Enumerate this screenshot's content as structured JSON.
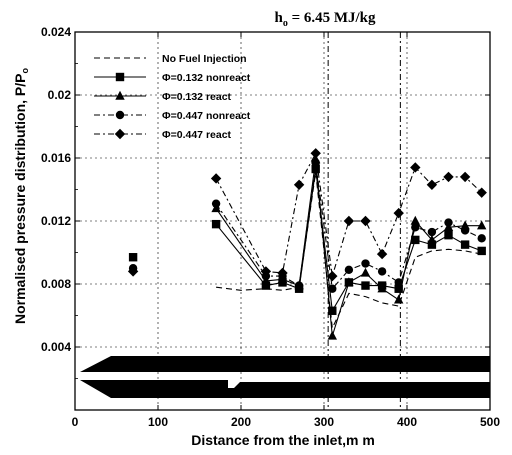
{
  "chart_data": {
    "type": "line",
    "title_main": "h",
    "title_sub": "o",
    "title_rest": " = 6.45 MJ/kg",
    "xlabel": "Distance from the inlet,m m",
    "ylabel": "Normalised pressure distribution, P/P",
    "ylabel_sub": "o",
    "xlim": [
      0,
      500
    ],
    "ylim": [
      0,
      0.024
    ],
    "x_ticks": [
      "0",
      "100",
      "200",
      "300",
      "400",
      "500"
    ],
    "y_ticks": [
      "0.004",
      "0.008",
      "0.012",
      "0.016",
      "0.02",
      "0.024"
    ],
    "grid": true,
    "legend_position": "top-left",
    "x_marker_lines": [
      305,
      392
    ],
    "series": [
      {
        "name": "No Fuel Injection",
        "dash": "6,4",
        "marker": "none",
        "x": [
          170,
          200,
          230,
          250,
          270,
          290,
          310,
          330,
          350,
          370,
          390,
          410,
          430,
          450,
          470,
          490
        ],
        "y": [
          0.0078,
          0.0076,
          0.0077,
          0.0076,
          0.0078,
          0.0151,
          0.0052,
          0.0074,
          0.0072,
          0.0068,
          0.0066,
          0.0097,
          0.0101,
          0.0102,
          0.0101,
          0.0099
        ],
        "iso_x": [],
        "iso_y": []
      },
      {
        "name": "Φ=0.132 nonreact",
        "dash": "",
        "marker": "square",
        "x": [
          170,
          230,
          250,
          270,
          290,
          310,
          330,
          350,
          370,
          390,
          410,
          430,
          450,
          470,
          490
        ],
        "y": [
          0.0118,
          0.0079,
          0.0081,
          0.0077,
          0.0153,
          0.0063,
          0.0081,
          0.0079,
          0.0079,
          0.0077,
          0.0108,
          0.0105,
          0.0111,
          0.0105,
          0.0101
        ],
        "iso_x": [
          70
        ],
        "iso_y": [
          0.0097
        ]
      },
      {
        "name": "Φ=0.132 react",
        "dash": "",
        "marker": "triangle",
        "x": [
          170,
          230,
          250,
          270,
          290,
          310,
          330,
          350,
          370,
          390,
          410,
          430,
          450,
          470,
          490
        ],
        "y": [
          0.0128,
          0.0082,
          0.0083,
          0.0079,
          0.0159,
          0.0047,
          0.0081,
          0.0087,
          0.0077,
          0.007,
          0.012,
          0.0108,
          0.0116,
          0.0117,
          0.0117
        ]
      },
      {
        "name": "Φ=0.447 nonreact",
        "dash": "6,3,2,3",
        "marker": "circle",
        "x": [
          170,
          230,
          250,
          270,
          290,
          310,
          330,
          350,
          370,
          390,
          410,
          430,
          450,
          470,
          490
        ],
        "y": [
          0.0131,
          0.0085,
          0.0085,
          0.0079,
          0.0157,
          0.0077,
          0.0089,
          0.0093,
          0.0088,
          0.0081,
          0.0116,
          0.0113,
          0.0119,
          0.0114,
          0.0109
        ],
        "iso_x": [
          70
        ],
        "iso_y": [
          0.009
        ]
      },
      {
        "name": "Φ=0.447 react",
        "dash": "6,3,2,3",
        "marker": "diamond",
        "x": [
          170,
          230,
          250,
          270,
          290,
          310,
          330,
          350,
          370,
          390,
          410,
          430,
          450,
          470,
          490
        ],
        "y": [
          0.0147,
          0.0088,
          0.0087,
          0.0143,
          0.0163,
          0.0085,
          0.012,
          0.012,
          0.0099,
          0.0125,
          0.0154,
          0.0143,
          0.0148,
          0.0148,
          0.0138
        ],
        "iso_x": [
          70
        ],
        "iso_y": [
          0.0088
        ]
      }
    ]
  }
}
